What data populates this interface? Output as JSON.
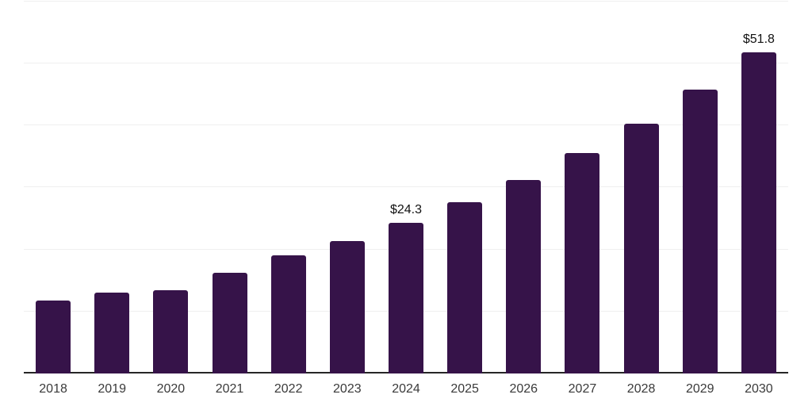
{
  "chart_data": {
    "type": "bar",
    "title": "",
    "xlabel": "",
    "ylabel": "",
    "categories": [
      "2018",
      "2019",
      "2020",
      "2021",
      "2022",
      "2023",
      "2024",
      "2025",
      "2026",
      "2027",
      "2028",
      "2029",
      "2030"
    ],
    "series": [
      {
        "name": "value",
        "values": [
          11.8,
          13.0,
          13.4,
          16.2,
          19.1,
          21.4,
          24.3,
          27.6,
          31.2,
          35.5,
          40.3,
          45.8,
          51.8
        ]
      }
    ],
    "data_labels": [
      {
        "category": "2024",
        "text": "$24.3"
      },
      {
        "category": "2030",
        "text": "$51.8"
      }
    ],
    "ylim": [
      0,
      60
    ],
    "gridline_step": 10,
    "grid": "horizontal-only",
    "legend": "none",
    "y_axis_tick_labels_visible": false,
    "colors": {
      "bar": "#361349",
      "axis_line": "#262626",
      "gridline": "#efefef",
      "tick_label": "#3a3a3a",
      "data_label": "#111111",
      "background": "#ffffff"
    }
  }
}
